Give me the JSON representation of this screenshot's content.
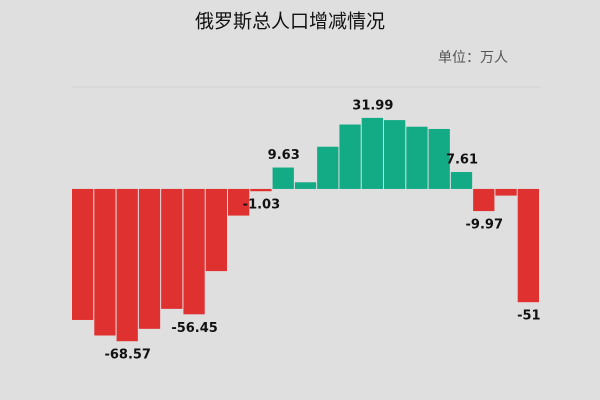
{
  "chart_data": {
    "type": "bar",
    "title": "俄罗斯总人口增减情况",
    "subtitle": "单位：万人",
    "categories": [
      null,
      null,
      null,
      null,
      null,
      null,
      null,
      null,
      null,
      null,
      null,
      null,
      null,
      null,
      null,
      null,
      null,
      null,
      null,
      null,
      null
    ],
    "values": [
      -59,
      -66,
      -68.57,
      -63,
      -54,
      -56.45,
      -37,
      -12,
      -1.03,
      9.63,
      3,
      19,
      29,
      31.99,
      31,
      28,
      27,
      7.61,
      -9.97,
      -3,
      -51
    ],
    "value_labels": [
      null,
      null,
      "-68.57",
      null,
      null,
      "-56.45",
      null,
      null,
      "-1.03",
      "9.63",
      null,
      null,
      null,
      "31.99",
      null,
      null,
      null,
      "7.61",
      "-9.97",
      null,
      "-51"
    ],
    "color_positive": "#12ab85",
    "color_negative": "#e03131",
    "ylim": [
      -75,
      45
    ]
  }
}
